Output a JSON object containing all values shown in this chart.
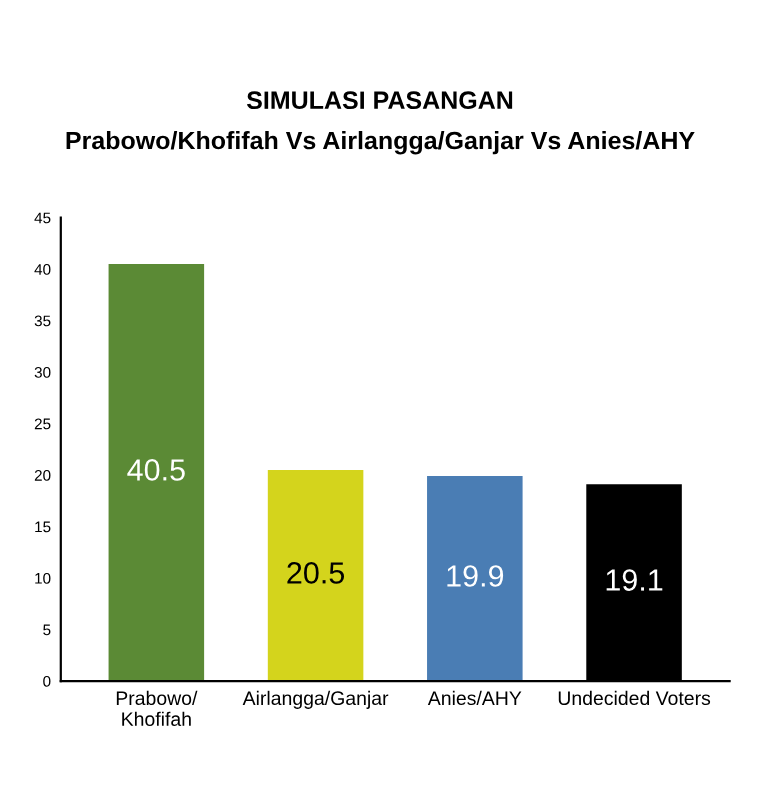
{
  "chart_data": {
    "type": "bar",
    "title": "SIMULASI PASANGAN",
    "subtitle": "Prabowo/Khofifah Vs Airlangga/Ganjar Vs Anies/AHY",
    "categories": [
      "Prabowo/\nKhofifah",
      "Airlangga/Ganjar",
      "Anies/AHY",
      "Undecided Voters"
    ],
    "values": [
      40.5,
      20.5,
      19.9,
      19.1
    ],
    "colors": [
      "#5b8a35",
      "#d4d41c",
      "#4a7db4",
      "#000000"
    ],
    "ylim": [
      0,
      45
    ],
    "yticks": [
      0,
      5,
      10,
      15,
      20,
      25,
      30,
      35,
      40,
      45
    ],
    "grid": false,
    "data_labels": true
  }
}
